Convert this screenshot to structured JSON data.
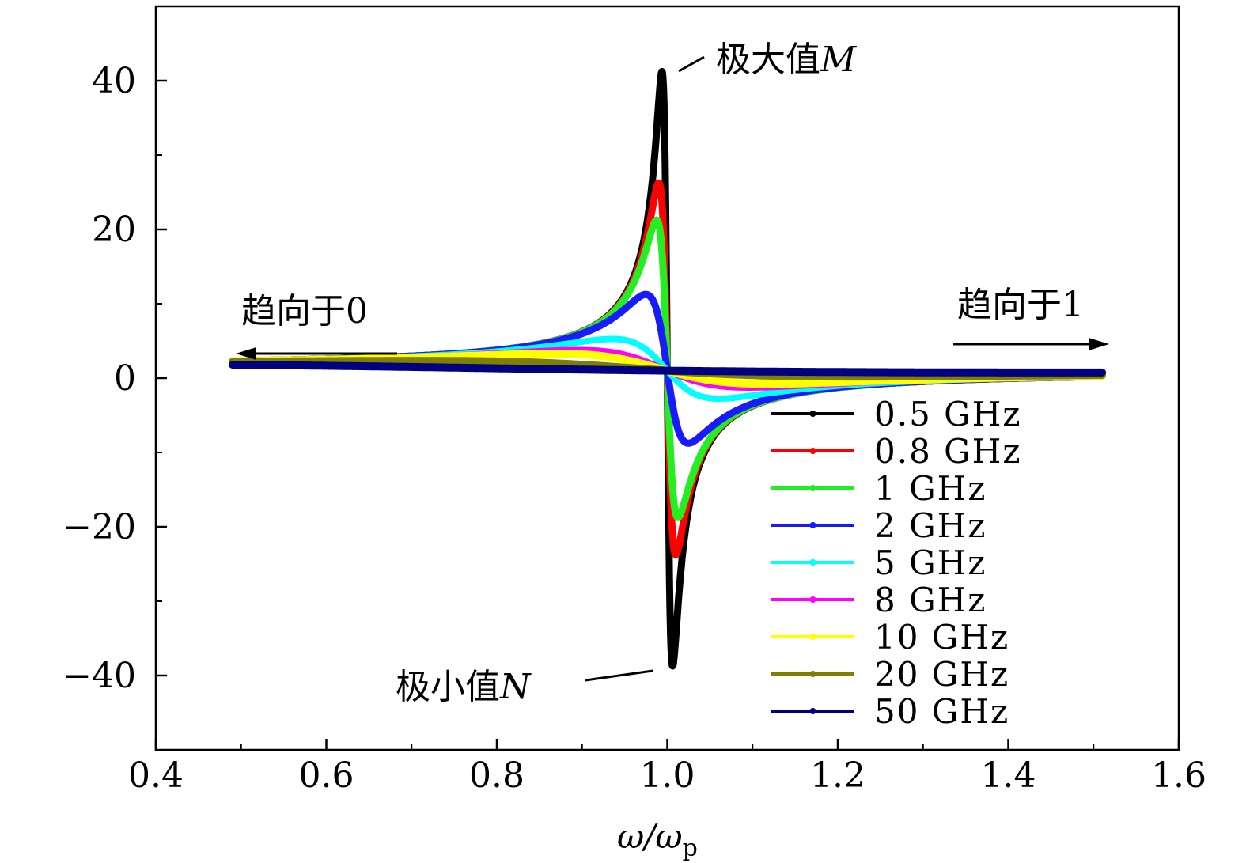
{
  "chart_data": {
    "type": "line",
    "title": "",
    "xlabel": "ω/ωp",
    "xlabel_main": "ω/ω",
    "xlabel_sub": "p",
    "ylabel": "",
    "xlim": [
      0.4,
      1.6
    ],
    "ylim": [
      -50,
      50
    ],
    "x_ticks": [
      0.4,
      0.6,
      0.8,
      1.0,
      1.2,
      1.4,
      1.6
    ],
    "x_tick_labels": [
      "0.4",
      "0.6",
      "0.8",
      "1.0",
      "1.2",
      "1.4",
      "1.6"
    ],
    "y_ticks": [
      -40,
      -20,
      0,
      20,
      40
    ],
    "y_tick_labels": [
      "−40",
      "−20",
      "0",
      "20",
      "40"
    ],
    "x_range_data": [
      0.49,
      1.51
    ],
    "series": [
      {
        "name": "0.5 GHz",
        "color": "#000000",
        "gamma": 0.0125,
        "width": 9
      },
      {
        "name": "0.8 GHz",
        "color": "#ff0000",
        "gamma": 0.02,
        "width": 9
      },
      {
        "name": "1 GHz",
        "color": "#22ee22",
        "gamma": 0.025,
        "width": 9
      },
      {
        "name": "2 GHz",
        "color": "#1a1aff",
        "gamma": 0.05,
        "width": 9
      },
      {
        "name": "5 GHz",
        "color": "#00ffff",
        "gamma": 0.125,
        "width": 8
      },
      {
        "name": "8 GHz",
        "color": "#ff00ff",
        "gamma": 0.2,
        "width": 8
      },
      {
        "name": "10 GHz",
        "color": "#ffff00",
        "gamma": 0.25,
        "width": 10
      },
      {
        "name": "20 GHz",
        "color": "#808000",
        "gamma": 0.5,
        "width": 10
      },
      {
        "name": "50 GHz",
        "color": "#000080",
        "gamma": 1.25,
        "width": 10
      }
    ],
    "annotations": {
      "max_label": "极大值",
      "max_var": "M",
      "min_label": "极小值",
      "min_var": "N",
      "left_label": "趋向于0",
      "right_label": "趋向于1"
    },
    "legend_position": "lower-right"
  }
}
